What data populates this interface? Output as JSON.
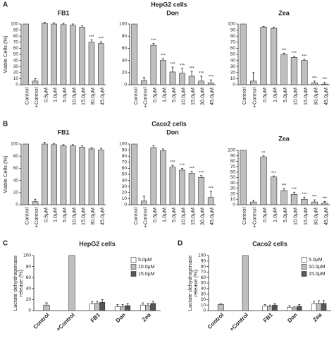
{
  "panels": [
    {
      "letter": "A",
      "title": "HepG2 cells"
    },
    {
      "letter": "B",
      "title": "Caco2 cells"
    },
    {
      "letter": "C"
    },
    {
      "letter": "D"
    }
  ],
  "chart_data": [
    {
      "type": "bar",
      "title": "FB1",
      "ylabel": [
        "Viable Cells (%)"
      ],
      "categories": [
        "Control",
        "+Control",
        "0.5μM",
        "1.0μM",
        "5.0μM",
        "10.0μM",
        "15.0μM",
        "30.0μM",
        "45.0μM"
      ],
      "values": [
        100,
        6,
        101,
        100,
        99,
        98,
        95,
        70,
        68
      ],
      "errors": [
        null,
        4,
        2,
        2,
        2,
        2,
        2,
        4,
        3
      ],
      "annotations": [
        null,
        null,
        null,
        null,
        null,
        null,
        null,
        "***",
        "***"
      ],
      "color": "#bfbfbf",
      "ylim": [
        0,
        100
      ],
      "yticks": [
        0,
        10,
        20,
        30,
        40,
        50,
        60,
        70,
        80,
        90,
        100
      ]
    },
    {
      "type": "bar",
      "title": "Don",
      "categories": [
        "Control",
        "+Control",
        "0.5μM",
        "1.0μM",
        "5.0μM",
        "10.0μM",
        "15.0μM",
        "30.0μM",
        "45.0μM"
      ],
      "values": [
        100,
        7,
        65,
        40,
        21,
        19,
        14,
        6,
        3
      ],
      "errors": [
        null,
        5,
        3,
        3,
        8,
        8,
        8,
        8,
        5
      ],
      "annotations": [
        null,
        null,
        "***",
        "***",
        "***",
        "***",
        "***",
        "***",
        "***"
      ],
      "color": "#bfbfbf",
      "ylim": [
        0,
        100
      ],
      "yticks": [
        0,
        20,
        40,
        60,
        80,
        100
      ]
    },
    {
      "type": "bar",
      "title": "Zea",
      "categories": [
        "Control",
        "+Control",
        "0.5μM",
        "1.0μM",
        "5.0μM",
        "10.0μM",
        "15.0μM",
        "30.0μM",
        "45.0μM"
      ],
      "values": [
        100,
        6,
        95,
        93,
        50,
        45,
        40,
        3,
        1
      ],
      "errors": [
        null,
        14,
        1,
        2,
        2,
        2,
        2,
        3,
        3
      ],
      "annotations": [
        null,
        null,
        null,
        null,
        "***",
        "***",
        "***",
        "***",
        "***"
      ],
      "color": "#bfbfbf",
      "ylim": [
        0,
        100
      ],
      "yticks": [
        0,
        10,
        20,
        30,
        40,
        50,
        60,
        70,
        80,
        90,
        100
      ]
    },
    {
      "type": "bar",
      "title": "FB1",
      "ylabel": [
        "Viable Cells (%)"
      ],
      "categories": [
        "Control",
        "+Control",
        "0.5μM",
        "1.0μM",
        "5.0μM",
        "10.0μM",
        "15.0μM",
        "30.0μM",
        "45.0μM"
      ],
      "values": [
        100,
        5,
        100,
        99,
        97,
        97,
        95,
        92,
        90
      ],
      "errors": [
        null,
        4,
        3,
        2,
        2,
        2,
        2,
        2,
        3
      ],
      "annotations": [
        null,
        null,
        null,
        null,
        null,
        null,
        null,
        null,
        null
      ],
      "color": "#bfbfbf",
      "ylim": [
        0,
        100
      ],
      "yticks": [
        0,
        20,
        40,
        60,
        80,
        100
      ]
    },
    {
      "type": "bar",
      "title": "Don",
      "categories": [
        "Control",
        "+Control",
        "0.5μM",
        "1.0μM",
        "5.0μM",
        "10.0μM",
        "15.0μM",
        "30.0μM",
        "45.0μM"
      ],
      "values": [
        100,
        6,
        94,
        89,
        62,
        57,
        52,
        45,
        12
      ],
      "errors": [
        null,
        8,
        3,
        3,
        3,
        3,
        3,
        3,
        10
      ],
      "annotations": [
        null,
        null,
        null,
        null,
        "***",
        "***",
        "***",
        "***",
        "***"
      ],
      "color": "#bfbfbf",
      "ylim": [
        0,
        100
      ],
      "yticks": [
        0,
        10,
        20,
        30,
        40,
        50,
        60,
        70,
        80,
        90,
        100
      ]
    },
    {
      "type": "bar",
      "title": "Zea",
      "categories": [
        "Control",
        "+Control",
        "0.5μM",
        "1.0μM",
        "5.0μM",
        "10.0μM",
        "15.0μM",
        "30.0μM",
        "45.0μM"
      ],
      "values": [
        100,
        5,
        88,
        51,
        26,
        19,
        10,
        5,
        3
      ],
      "errors": [
        null,
        3,
        2,
        2,
        4,
        4,
        4,
        4,
        3
      ],
      "annotations": [
        null,
        null,
        "**",
        "***",
        "***",
        "***",
        "***",
        "***",
        "***"
      ],
      "color": "#bfbfbf",
      "ylim": [
        0,
        100
      ],
      "yticks": [
        0,
        10,
        20,
        30,
        40,
        50,
        60,
        70,
        80,
        90,
        100
      ]
    },
    {
      "type": "grouped_bar",
      "title": "HepG2 cells",
      "ylabel": [
        "Lactate dehydrogenase",
        "release (%)"
      ],
      "categories": [
        "Control",
        "+Control",
        "FB1",
        "Don",
        "Zea"
      ],
      "single_values": [
        10,
        100,
        null,
        null,
        null
      ],
      "single_errors": [
        4,
        null,
        null,
        null,
        null
      ],
      "single_color": "#bfbfbf",
      "series": [
        {
          "name": "5.0μM",
          "color": "#ffffff",
          "values": [
            null,
            null,
            12,
            7,
            10
          ],
          "errors": [
            null,
            null,
            4,
            4,
            4
          ]
        },
        {
          "name": "10.0μM",
          "color": "#bdbdbd",
          "values": [
            null,
            null,
            13,
            7,
            9
          ],
          "errors": [
            null,
            null,
            4,
            4,
            4
          ]
        },
        {
          "name": "15.0μM",
          "color": "#555555",
          "values": [
            null,
            null,
            15,
            9,
            13
          ],
          "errors": [
            null,
            null,
            5,
            4,
            4
          ]
        }
      ],
      "ylim": [
        0,
        100
      ],
      "yticks": [
        0,
        20,
        40,
        60,
        80,
        100
      ]
    },
    {
      "type": "grouped_bar",
      "title": "Caco2 cells",
      "ylabel": [
        "Lactate dehydrogenase",
        "release (%)"
      ],
      "categories": [
        "Control",
        "+Control",
        "FB1",
        "Don",
        "Zea"
      ],
      "single_values": [
        11,
        100,
        null,
        null,
        null
      ],
      "single_errors": [
        1,
        null,
        null,
        null,
        null
      ],
      "single_color": "#bfbfbf",
      "series": [
        {
          "name": "5.0μM",
          "color": "#ffffff",
          "values": [
            null,
            null,
            8,
            6,
            12
          ],
          "errors": [
            null,
            null,
            3,
            3,
            5
          ]
        },
        {
          "name": "10.0μM",
          "color": "#bdbdbd",
          "values": [
            null,
            null,
            7,
            5,
            13
          ],
          "errors": [
            null,
            null,
            3,
            2,
            5
          ]
        },
        {
          "name": "15.0μM",
          "color": "#555555",
          "values": [
            null,
            null,
            10,
            8,
            13
          ],
          "errors": [
            null,
            null,
            3,
            3,
            5
          ]
        }
      ],
      "ylim": [
        0,
        100
      ],
      "yticks": [
        0,
        10,
        20,
        30,
        40,
        50,
        60,
        70,
        80,
        90,
        100
      ]
    }
  ]
}
